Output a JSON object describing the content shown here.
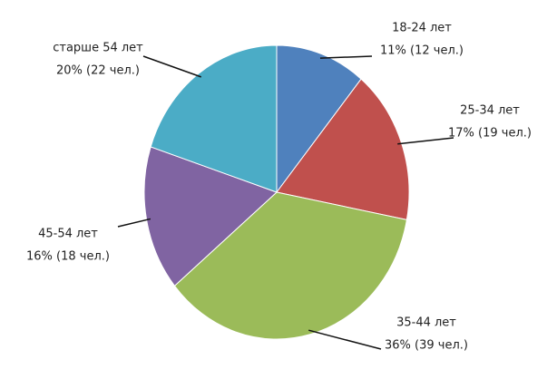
{
  "chart_data": {
    "type": "pie",
    "categories": [
      "18-24 лет",
      "25-34 лет",
      "35-44 лет",
      "45-54 лет",
      "старше 54 лет"
    ],
    "values": [
      11,
      17,
      36,
      16,
      20
    ],
    "value_labels": [
      "11% (12 чел.)",
      "17% (19 чел.)",
      "36% (39 чел.)",
      "16% (18 чел.)",
      "20% (22 чел.)"
    ],
    "colors": [
      "#4f81bd",
      "#c0504d",
      "#9bbb59",
      "#8064a2",
      "#4bacc6"
    ]
  }
}
